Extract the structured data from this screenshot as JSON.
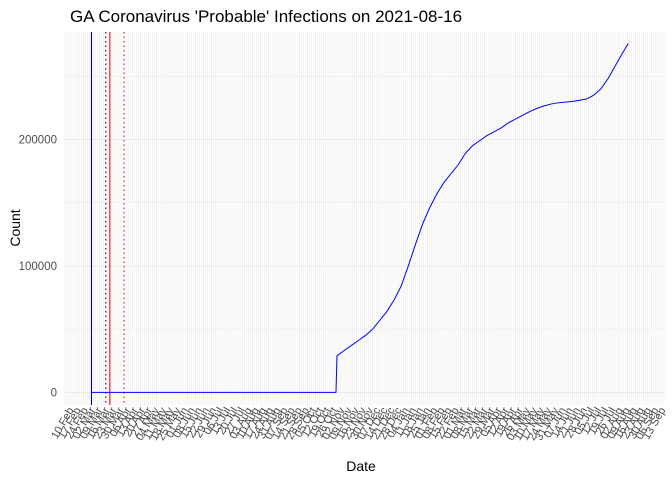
{
  "chart_data": {
    "type": "line",
    "title": "GA Coronavirus 'Probable' Infections on 2021-08-16",
    "xlabel": "Date",
    "ylabel": "Count",
    "x_range": [
      "2020-02-05",
      "2021-09-15"
    ],
    "ylim": [
      -10000,
      285000
    ],
    "y_ticks": [
      0,
      100000,
      200000
    ],
    "y_tick_labels": [
      "0",
      "100000",
      "200000"
    ],
    "grid": true,
    "x_minor_grid_every_days": 2,
    "x_tick_labels": [
      "10 Feb",
      "17 Feb",
      "24 Feb",
      "02 Mar",
      "09 Mar",
      "16 Mar",
      "23 Mar",
      "30 Mar",
      "06 Apr",
      "13 Apr",
      "20 Apr",
      "27 Apr",
      "04 May",
      "11 May",
      "18 May",
      "25 May",
      "01 Jun",
      "08 Jun",
      "15 Jun",
      "22 Jun",
      "29 Jun",
      "06 Jul",
      "13 Jul",
      "20 Jul",
      "27 Jul",
      "03 Aug",
      "10 Aug",
      "17 Aug",
      "24 Aug",
      "31 Aug",
      "07 Sep",
      "14 Sep",
      "21 Sep",
      "28 Sep",
      "05 Oct",
      "12 Oct",
      "19 Oct",
      "26 Oct",
      "02 Nov",
      "09 Nov",
      "16 Nov",
      "23 Nov",
      "30 Nov",
      "07 Dec",
      "14 Dec",
      "21 Dec",
      "28 Dec",
      "04 Jan",
      "11 Jan",
      "18 Jan",
      "25 Jan",
      "01 Feb",
      "08 Feb",
      "15 Feb",
      "22 Feb",
      "01 Mar",
      "08 Mar",
      "15 Mar",
      "22 Mar",
      "29 Mar",
      "05 Apr",
      "12 Apr",
      "19 Apr",
      "26 Apr",
      "03 May",
      "10 May",
      "17 May",
      "24 May",
      "31 May",
      "07 Jun",
      "14 Jun",
      "21 Jun",
      "28 Jun",
      "05 Jul",
      "12 Jul",
      "19 Jul",
      "26 Jul",
      "02 Aug",
      "09 Aug",
      "16 Aug",
      "23 Aug",
      "30 Aug",
      "06 Sep",
      "13 Sep"
    ],
    "vlines": [
      {
        "date": "2020-03-02",
        "color": "#00008b",
        "style": "solid"
      },
      {
        "date": "2020-03-16",
        "color": "#00008b",
        "style": "dotted"
      },
      {
        "date": "2020-03-20",
        "color": "#ff0000",
        "style": "solid"
      },
      {
        "date": "2020-04-03",
        "color": "#ff0000",
        "style": "dotted"
      }
    ],
    "series": [
      {
        "color": "#0000ff",
        "points": [
          [
            "2020-03-02",
            0
          ],
          [
            "2020-10-28",
            0
          ],
          [
            "2020-10-29",
            29000
          ],
          [
            "2020-11-05",
            33000
          ],
          [
            "2020-11-12",
            37000
          ],
          [
            "2020-11-19",
            41000
          ],
          [
            "2020-11-26",
            45000
          ],
          [
            "2020-12-03",
            50000
          ],
          [
            "2020-12-10",
            57000
          ],
          [
            "2020-12-17",
            64000
          ],
          [
            "2020-12-24",
            73000
          ],
          [
            "2020-12-31",
            84000
          ],
          [
            "2021-01-07",
            100000
          ],
          [
            "2021-01-14",
            117000
          ],
          [
            "2021-01-21",
            133000
          ],
          [
            "2021-01-28",
            146000
          ],
          [
            "2021-02-04",
            157000
          ],
          [
            "2021-02-11",
            166000
          ],
          [
            "2021-02-18",
            173000
          ],
          [
            "2021-02-25",
            180000
          ],
          [
            "2021-03-04",
            189000
          ],
          [
            "2021-03-11",
            195000
          ],
          [
            "2021-03-18",
            199000
          ],
          [
            "2021-03-25",
            203000
          ],
          [
            "2021-04-01",
            206000
          ],
          [
            "2021-04-08",
            209000
          ],
          [
            "2021-04-15",
            213000
          ],
          [
            "2021-04-22",
            216000
          ],
          [
            "2021-04-29",
            219000
          ],
          [
            "2021-05-06",
            222000
          ],
          [
            "2021-05-13",
            224500
          ],
          [
            "2021-05-20",
            226500
          ],
          [
            "2021-05-27",
            228000
          ],
          [
            "2021-06-03",
            229000
          ],
          [
            "2021-06-10",
            229500
          ],
          [
            "2021-06-17",
            230000
          ],
          [
            "2021-06-24",
            231000
          ],
          [
            "2021-07-01",
            232000
          ],
          [
            "2021-07-08",
            235000
          ],
          [
            "2021-07-15",
            240000
          ],
          [
            "2021-07-22",
            248000
          ],
          [
            "2021-07-29",
            258000
          ],
          [
            "2021-08-05",
            268000
          ],
          [
            "2021-08-11",
            276000
          ]
        ]
      }
    ]
  }
}
